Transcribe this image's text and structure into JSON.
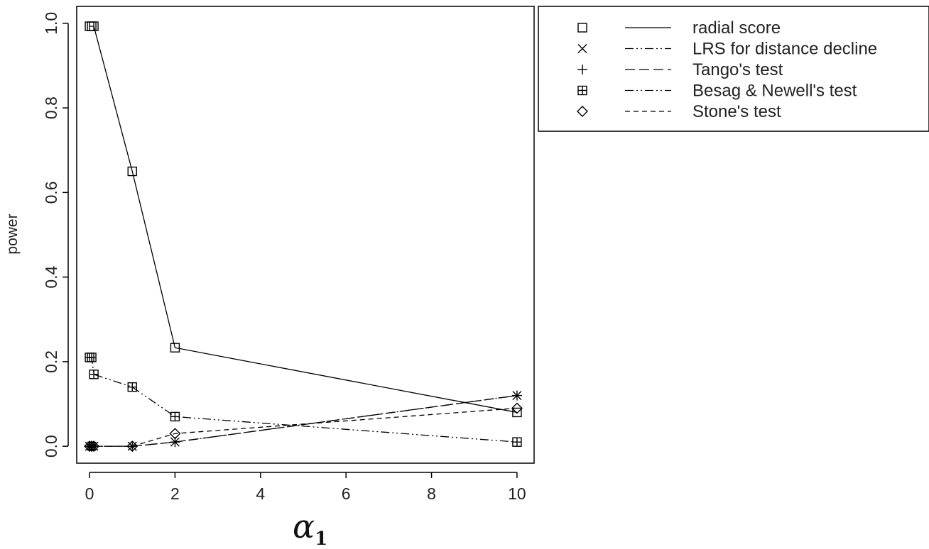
{
  "chart_data": {
    "type": "line",
    "title": "",
    "xlabel": {
      "symbol": "α",
      "subscript": "1"
    },
    "ylabel": "power",
    "xlim": [
      -0.3,
      10.4
    ],
    "ylim": [
      -0.04,
      1.04
    ],
    "x_ticks": [
      0,
      2,
      4,
      6,
      8,
      10
    ],
    "y_ticks": [
      0.0,
      0.2,
      0.4,
      0.6,
      0.8,
      1.0
    ],
    "x_tick_labels": [
      "0",
      "2",
      "4",
      "6",
      "8",
      "10"
    ],
    "y_tick_labels": [
      "0.0",
      "0.2",
      "0.4",
      "0.6",
      "0.8",
      "1.0"
    ],
    "legend_position": "outside-top-right",
    "colors": {
      "ink": "#000000",
      "background": "#ffffff"
    },
    "series": [
      {
        "name": "radial score",
        "marker": "square",
        "line": "solid",
        "x": [
          0,
          0.05,
          0.1,
          1,
          2,
          10
        ],
        "y": [
          0.993,
          0.993,
          0.993,
          0.65,
          0.233,
          0.08
        ]
      },
      {
        "name": "LRS for distance decline",
        "marker": "x",
        "line": "dash-dot-dot",
        "x": [
          0,
          0.05,
          0.1,
          1,
          2,
          10
        ],
        "y": [
          0.0,
          0.0,
          0.0,
          0.0,
          0.01,
          0.12
        ]
      },
      {
        "name": "Tango's test",
        "marker": "plus",
        "line": "longdash",
        "x": [
          0,
          0.05,
          0.1,
          1,
          2,
          10
        ],
        "y": [
          0.0,
          0.0,
          0.0,
          0.0,
          0.01,
          0.12
        ]
      },
      {
        "name": "Besag & Newell's test",
        "marker": "boxplus",
        "line": "dash-dot-dot",
        "x": [
          0,
          0.05,
          0.1,
          1,
          2,
          10
        ],
        "y": [
          0.21,
          0.21,
          0.17,
          0.14,
          0.07,
          0.01
        ]
      },
      {
        "name": "Stone's test",
        "marker": "diamond",
        "line": "dashed",
        "x": [
          0,
          0.05,
          0.1,
          1,
          2,
          10
        ],
        "y": [
          0.0,
          0.0,
          0.0,
          0.0,
          0.03,
          0.09
        ]
      }
    ]
  }
}
